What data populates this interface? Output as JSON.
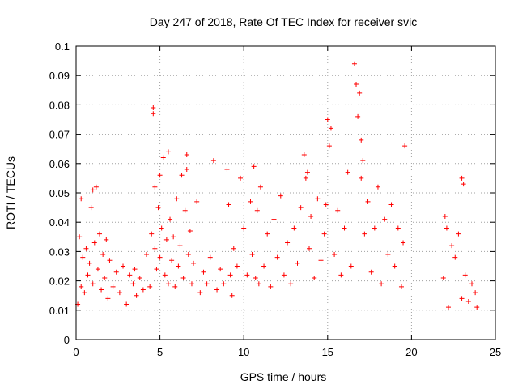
{
  "chart_data": {
    "type": "scatter",
    "title": "Day 247 of 2018, Rate Of TEC Index for receiver svic",
    "xlabel": "GPS time / hours",
    "ylabel": "ROTI / TECUs",
    "xlim": [
      0,
      25
    ],
    "ylim": [
      0,
      0.1
    ],
    "xticks": [
      0,
      5,
      10,
      15,
      20,
      25
    ],
    "xtick_labels": [
      "0",
      "5",
      "10",
      "15",
      "20",
      "25"
    ],
    "yticks": [
      0,
      0.01,
      0.02,
      0.03,
      0.04,
      0.05,
      0.06,
      0.07,
      0.08,
      0.09,
      0.1
    ],
    "ytick_labels": [
      "0",
      "0.01",
      "0.02",
      "0.03",
      "0.04",
      "0.05",
      "0.06",
      "0.07",
      "0.08",
      "0.09",
      "0.1"
    ],
    "grid": true,
    "marker": "plus",
    "color": "#ff0000",
    "x": [
      0.1,
      0.2,
      0.3,
      0.3,
      0.4,
      0.5,
      0.6,
      0.7,
      0.8,
      0.9,
      1.0,
      1.0,
      1.1,
      1.2,
      1.3,
      1.4,
      1.5,
      1.6,
      1.7,
      1.8,
      1.9,
      2.0,
      2.2,
      2.4,
      2.6,
      2.8,
      3.0,
      3.2,
      3.4,
      3.5,
      3.6,
      3.8,
      4.0,
      4.2,
      4.4,
      4.5,
      4.6,
      4.6,
      4.7,
      4.7,
      4.8,
      4.9,
      5.0,
      5.0,
      5.1,
      5.2,
      5.3,
      5.4,
      5.5,
      5.5,
      5.6,
      5.7,
      5.8,
      5.9,
      6.0,
      6.1,
      6.2,
      6.3,
      6.4,
      6.5,
      6.6,
      6.6,
      6.7,
      6.8,
      6.9,
      7.0,
      7.2,
      7.4,
      7.6,
      7.8,
      8.0,
      8.2,
      8.4,
      8.6,
      8.8,
      9.0,
      9.1,
      9.2,
      9.3,
      9.4,
      9.6,
      9.8,
      10.0,
      10.2,
      10.4,
      10.5,
      10.6,
      10.7,
      10.8,
      10.9,
      11.0,
      11.2,
      11.4,
      11.6,
      11.8,
      12.0,
      12.2,
      12.4,
      12.6,
      12.8,
      13.0,
      13.2,
      13.4,
      13.6,
      13.7,
      13.8,
      13.9,
      14.0,
      14.2,
      14.4,
      14.6,
      14.8,
      14.9,
      15.0,
      15.1,
      15.2,
      15.4,
      15.6,
      15.8,
      16.0,
      16.2,
      16.4,
      16.6,
      16.7,
      16.8,
      16.9,
      17.0,
      17.0,
      17.1,
      17.2,
      17.4,
      17.6,
      17.8,
      18.0,
      18.2,
      18.4,
      18.6,
      18.8,
      19.0,
      19.2,
      19.4,
      19.5,
      19.6,
      21.9,
      22.0,
      22.1,
      22.2,
      22.4,
      22.6,
      22.8,
      23.0,
      23.0,
      23.1,
      23.2,
      23.4,
      23.6,
      23.8,
      23.9
    ],
    "y": [
      0.012,
      0.035,
      0.048,
      0.018,
      0.028,
      0.016,
      0.031,
      0.022,
      0.026,
      0.045,
      0.051,
      0.019,
      0.033,
      0.052,
      0.024,
      0.036,
      0.017,
      0.029,
      0.021,
      0.034,
      0.014,
      0.027,
      0.018,
      0.023,
      0.016,
      0.025,
      0.012,
      0.022,
      0.019,
      0.024,
      0.015,
      0.021,
      0.017,
      0.029,
      0.018,
      0.036,
      0.079,
      0.077,
      0.031,
      0.052,
      0.024,
      0.045,
      0.056,
      0.028,
      0.038,
      0.062,
      0.022,
      0.034,
      0.064,
      0.019,
      0.041,
      0.027,
      0.035,
      0.018,
      0.048,
      0.025,
      0.032,
      0.056,
      0.021,
      0.044,
      0.063,
      0.058,
      0.029,
      0.037,
      0.019,
      0.026,
      0.047,
      0.016,
      0.023,
      0.019,
      0.028,
      0.061,
      0.017,
      0.024,
      0.019,
      0.058,
      0.046,
      0.022,
      0.015,
      0.031,
      0.025,
      0.055,
      0.038,
      0.022,
      0.047,
      0.029,
      0.059,
      0.021,
      0.044,
      0.019,
      0.052,
      0.025,
      0.036,
      0.018,
      0.041,
      0.028,
      0.049,
      0.022,
      0.033,
      0.019,
      0.038,
      0.026,
      0.045,
      0.063,
      0.055,
      0.057,
      0.031,
      0.042,
      0.021,
      0.048,
      0.027,
      0.036,
      0.046,
      0.075,
      0.066,
      0.072,
      0.029,
      0.044,
      0.022,
      0.038,
      0.057,
      0.025,
      0.094,
      0.087,
      0.076,
      0.084,
      0.068,
      0.055,
      0.061,
      0.036,
      0.047,
      0.023,
      0.038,
      0.052,
      0.019,
      0.041,
      0.029,
      0.046,
      0.025,
      0.038,
      0.018,
      0.033,
      0.066,
      0.021,
      0.042,
      0.038,
      0.011,
      0.032,
      0.028,
      0.036,
      0.014,
      0.055,
      0.053,
      0.022,
      0.013,
      0.019,
      0.016,
      0.011
    ]
  }
}
